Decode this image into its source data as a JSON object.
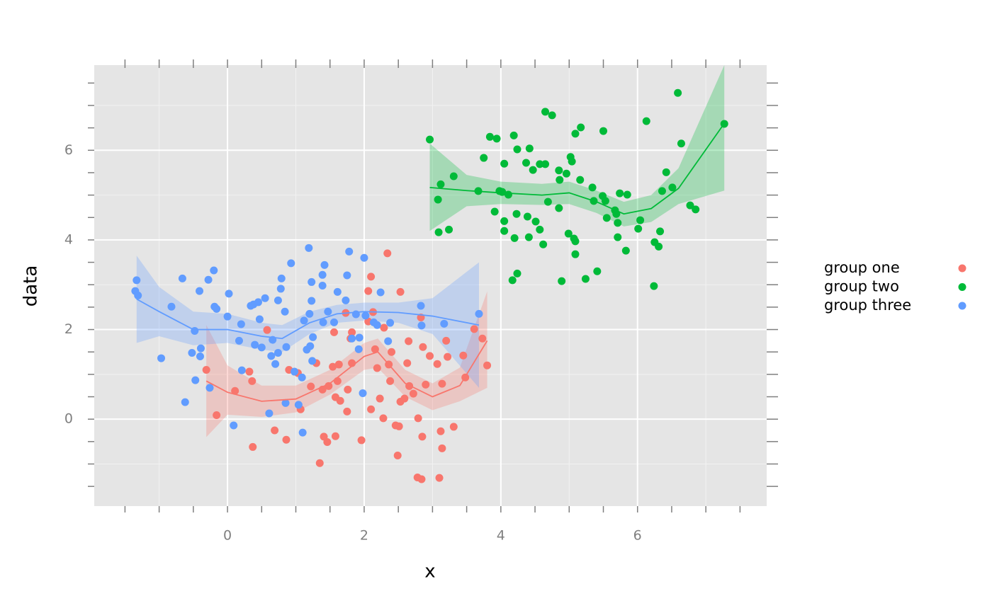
{
  "chart_data": {
    "type": "scatter",
    "xlabel": "x",
    "ylabel": "data",
    "xlim": [
      -1.95,
      7.89
    ],
    "ylim": [
      -1.94,
      7.9
    ],
    "xticks": [
      0,
      2,
      4,
      6
    ],
    "yticks": [
      0,
      2,
      4,
      6
    ],
    "xticks_minor": [
      -1.5,
      -1,
      -0.5,
      0,
      0.5,
      1,
      1.5,
      2,
      2.5,
      3,
      3.5,
      4,
      4.5,
      5,
      5.5,
      6,
      6.5,
      7,
      7.5
    ],
    "yticks_minor": [
      -1.5,
      -1,
      -0.5,
      0,
      0.5,
      1,
      1.5,
      2,
      2.5,
      3,
      3.5,
      4,
      4.5,
      5,
      5.5,
      6,
      6.5,
      7,
      7.5
    ],
    "xgrid_minor": [
      -1,
      1,
      3,
      5,
      7
    ],
    "ygrid_minor": [
      -1,
      1,
      3,
      5,
      7
    ],
    "grid": true,
    "legend": "right",
    "series": [
      {
        "name": "group one",
        "color": "#F8766D",
        "x": [
          -0.31,
          -0.16,
          0.11,
          0.32,
          0.36,
          0.37,
          0.58,
          0.69,
          0.86,
          0.9,
          1.03,
          1.07,
          1.22,
          1.3,
          1.35,
          1.39,
          1.41,
          1.46,
          1.48,
          1.54,
          1.56,
          1.58,
          1.58,
          1.61,
          1.63,
          1.65,
          1.73,
          1.75,
          1.76,
          1.8,
          1.82,
          1.82,
          1.96,
          2.06,
          2.06,
          2.1,
          2.1,
          2.13,
          2.16,
          2.19,
          2.23,
          2.28,
          2.29,
          2.34,
          2.36,
          2.38,
          2.4,
          2.46,
          2.49,
          2.51,
          2.53,
          2.53,
          2.59,
          2.63,
          2.65,
          2.66,
          2.72,
          2.78,
          2.79,
          2.83,
          2.84,
          2.85,
          2.86,
          2.9,
          2.96,
          3.07,
          3.1,
          3.12,
          3.14,
          3.14,
          3.2,
          3.22,
          3.31,
          3.45,
          3.48,
          3.61,
          3.73,
          3.8
        ],
        "values": [
          1.1,
          0.09,
          0.63,
          1.06,
          0.85,
          -0.62,
          1.99,
          -0.25,
          -0.46,
          1.1,
          1.03,
          0.22,
          0.73,
          1.25,
          -0.98,
          0.66,
          -0.39,
          -0.51,
          0.74,
          1.17,
          1.94,
          0.49,
          -0.38,
          0.85,
          1.22,
          0.41,
          2.37,
          0.17,
          0.66,
          1.8,
          1.94,
          1.25,
          -0.47,
          2.18,
          2.86,
          0.22,
          3.18,
          2.39,
          1.56,
          1.14,
          0.46,
          0.02,
          2.04,
          3.7,
          1.22,
          0.85,
          1.5,
          -0.14,
          -0.81,
          -0.16,
          2.84,
          0.39,
          0.46,
          1.25,
          1.74,
          0.74,
          0.57,
          -1.3,
          0.02,
          2.27,
          -1.34,
          -0.39,
          1.61,
          0.77,
          1.41,
          1.23,
          -1.31,
          -0.27,
          -0.65,
          0.79,
          1.75,
          1.39,
          -0.17,
          1.42,
          0.93,
          2.01,
          1.8,
          1.2
        ],
        "smooth": {
          "x": [
            -0.31,
            0,
            0.5,
            1,
            1.5,
            2,
            2.2,
            2.6,
            3,
            3.4,
            3.8
          ],
          "values": [
            0.85,
            0.6,
            0.4,
            0.45,
            0.8,
            1.4,
            1.5,
            0.8,
            0.5,
            0.75,
            1.75
          ],
          "lower": [
            -0.4,
            0.1,
            0.05,
            0.15,
            0.55,
            1.1,
            1.15,
            0.5,
            0.2,
            0.4,
            0.7
          ],
          "upper": [
            2.1,
            1.2,
            0.75,
            0.75,
            1.1,
            1.7,
            1.8,
            1.1,
            0.8,
            1.15,
            2.85
          ]
        }
      },
      {
        "name": "group two",
        "color": "#00BA38",
        "x": [
          2.96,
          3.12,
          3.08,
          3.09,
          3.24,
          3.31,
          3.67,
          3.75,
          3.84,
          3.94,
          3.91,
          3.98,
          4.02,
          4.05,
          4.05,
          4.05,
          4.11,
          4.17,
          4.19,
          4.2,
          4.23,
          4.24,
          4.24,
          4.37,
          4.39,
          4.41,
          4.42,
          4.47,
          4.51,
          4.57,
          4.57,
          4.62,
          4.65,
          4.65,
          4.69,
          4.75,
          4.85,
          4.85,
          4.86,
          4.89,
          4.96,
          4.99,
          5.02,
          5.04,
          5.07,
          5.09,
          5.09,
          5.09,
          5.16,
          5.17,
          5.24,
          5.34,
          5.36,
          5.41,
          5.49,
          5.5,
          5.53,
          5.55,
          5.67,
          5.69,
          5.71,
          5.71,
          5.74,
          5.83,
          5.85,
          6.01,
          6.04,
          6.13,
          6.24,
          6.25,
          6.31,
          6.33,
          6.36,
          6.42,
          6.51,
          6.59,
          6.64,
          6.77,
          6.85,
          7.27
        ],
        "values": [
          6.24,
          5.24,
          4.9,
          4.17,
          4.23,
          5.42,
          5.09,
          5.83,
          6.3,
          6.26,
          4.63,
          5.09,
          5.07,
          5.7,
          4.42,
          4.2,
          5.01,
          3.1,
          6.33,
          4.04,
          4.58,
          6.02,
          3.25,
          5.72,
          4.52,
          4.06,
          6.04,
          5.56,
          4.41,
          5.69,
          4.23,
          3.9,
          5.69,
          6.86,
          4.85,
          6.78,
          4.71,
          5.55,
          5.34,
          3.08,
          5.48,
          4.14,
          5.85,
          5.75,
          4.03,
          6.37,
          3.68,
          3.97,
          5.34,
          6.51,
          3.13,
          5.17,
          4.87,
          3.3,
          4.98,
          6.43,
          4.87,
          4.49,
          4.66,
          4.58,
          4.38,
          4.06,
          5.04,
          3.76,
          5.01,
          4.25,
          4.44,
          6.65,
          2.97,
          3.95,
          3.85,
          4.19,
          5.09,
          5.51,
          5.17,
          7.28,
          6.15,
          4.77,
          4.68,
          6.59
        ],
        "smooth": {
          "x": [
            2.96,
            3.5,
            4,
            4.6,
            5,
            5.4,
            5.8,
            6.2,
            6.6,
            7.27
          ],
          "values": [
            5.17,
            5.1,
            5.05,
            5.0,
            5.05,
            4.85,
            4.58,
            4.7,
            5.15,
            6.6
          ],
          "lower": [
            4.2,
            4.75,
            4.8,
            4.78,
            4.8,
            4.6,
            4.3,
            4.4,
            4.8,
            5.1
          ],
          "upper": [
            6.15,
            5.45,
            5.3,
            5.25,
            5.3,
            5.1,
            4.85,
            5.0,
            5.6,
            7.9
          ]
        }
      },
      {
        "name": "group three",
        "color": "#619CFF",
        "x": [
          -1.35,
          -1.33,
          -1.31,
          -0.97,
          -0.82,
          -0.66,
          -0.62,
          -0.52,
          -0.48,
          -0.47,
          -0.41,
          -0.4,
          -0.39,
          -0.28,
          -0.26,
          -0.2,
          -0.19,
          -0.16,
          0,
          0.02,
          0.09,
          0.17,
          0.2,
          0.21,
          0.34,
          0.38,
          0.4,
          0.45,
          0.47,
          0.5,
          0.55,
          0.61,
          0.64,
          0.66,
          0.7,
          0.74,
          0.74,
          0.78,
          0.79,
          0.84,
          0.85,
          0.86,
          0.93,
          0.98,
          1.04,
          1.09,
          1.1,
          1.12,
          1.16,
          1.19,
          1.2,
          1.21,
          1.23,
          1.23,
          1.24,
          1.25,
          1.39,
          1.39,
          1.4,
          1.42,
          1.47,
          1.56,
          1.61,
          1.73,
          1.75,
          1.78,
          1.82,
          1.88,
          1.92,
          1.93,
          1.98,
          2.0,
          2.02,
          2.14,
          2.19,
          2.24,
          2.35,
          2.38,
          2.83,
          2.84,
          3.17,
          3.68
        ],
        "values": [
          2.86,
          3.1,
          2.76,
          1.36,
          2.51,
          3.14,
          0.38,
          1.48,
          1.97,
          0.87,
          2.86,
          1.4,
          1.58,
          3.11,
          0.7,
          3.32,
          2.51,
          2.46,
          2.29,
          2.8,
          -0.14,
          1.75,
          2.12,
          1.09,
          2.53,
          2.56,
          1.66,
          2.61,
          2.23,
          1.6,
          2.7,
          0.13,
          1.41,
          1.77,
          1.23,
          2.65,
          1.48,
          2.91,
          3.14,
          2.4,
          0.36,
          1.61,
          3.48,
          1.06,
          0.32,
          0.93,
          -0.3,
          2.2,
          1.55,
          3.82,
          2.35,
          1.63,
          2.64,
          3.06,
          1.3,
          1.83,
          2.98,
          3.22,
          2.16,
          3.44,
          2.4,
          2.16,
          2.84,
          2.65,
          3.21,
          3.74,
          1.8,
          2.34,
          1.56,
          1.82,
          0.58,
          3.6,
          2.31,
          2.16,
          2.1,
          2.83,
          1.74,
          2.15,
          2.53,
          2.09,
          2.13,
          2.35
        ],
        "smooth": {
          "x": [
            -1.33,
            -1,
            -0.5,
            0,
            0.5,
            0.8,
            1.2,
            1.6,
            2,
            2.5,
            3,
            3.68
          ],
          "values": [
            2.68,
            2.4,
            2.0,
            2.0,
            1.85,
            1.8,
            2.15,
            2.35,
            2.4,
            2.38,
            2.3,
            2.1
          ],
          "lower": [
            1.7,
            1.85,
            1.65,
            1.7,
            1.55,
            1.5,
            1.9,
            2.15,
            2.2,
            2.15,
            1.9,
            0.7
          ],
          "upper": [
            3.65,
            2.95,
            2.4,
            2.35,
            2.15,
            2.1,
            2.4,
            2.55,
            2.6,
            2.6,
            2.7,
            3.5
          ]
        }
      }
    ]
  }
}
